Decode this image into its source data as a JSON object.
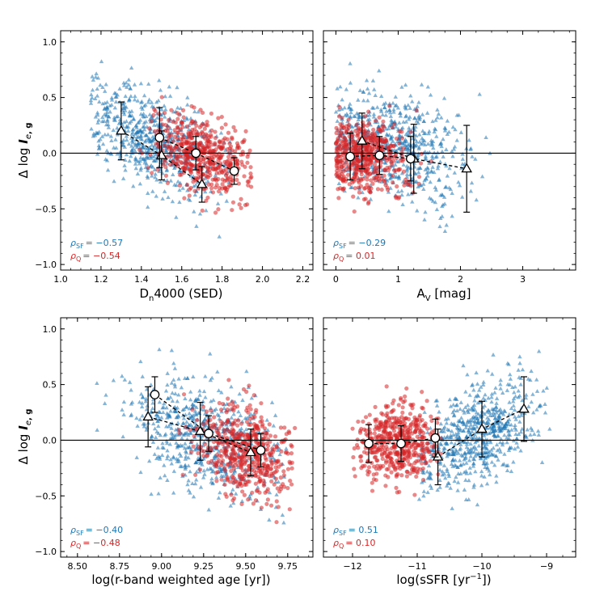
{
  "colors": {
    "star_forming": "#1f77b4",
    "quiescent": "#d62728",
    "zero_line": "#000000",
    "binned": "#000000"
  },
  "chart_data": [
    {
      "type": "scatter",
      "id": "dn4000",
      "xlabel": "D",
      "xlabel_sub": "n",
      "xlabel_rest": "4000 (SED)",
      "ylabel": "Δ log I_e,g",
      "xlim": [
        1.0,
        2.25
      ],
      "ylim": [
        -1.05,
        1.1
      ],
      "xticks": [
        "1.0",
        "1.2",
        "1.4",
        "1.6",
        "1.8",
        "2.0",
        "2.2"
      ],
      "xtick_values": [
        1.0,
        1.2,
        1.4,
        1.6,
        1.8,
        2.0,
        2.2
      ],
      "yticks": [
        "−1.0",
        "−0.5",
        "0.0",
        "0.5",
        "1.0"
      ],
      "ytick_values": [
        -1.0,
        -0.5,
        0.0,
        0.5,
        1.0
      ],
      "rho_sf_label": "ρ",
      "rho_sf_sub": "SF",
      "rho_sf": "= −0.57",
      "rho_q_label": "ρ",
      "rho_q_sub": "Q",
      "rho_q": "= −0.54",
      "sf_cloud": {
        "x_center": 1.45,
        "x_spread": 0.17,
        "y_slope": -0.8,
        "y_intercept": 1.3,
        "y_spread": 0.22,
        "n": 650,
        "x_min": 1.15,
        "x_max": 1.85
      },
      "q_cloud": {
        "x_center": 1.7,
        "x_spread": 0.12,
        "y_slope": -0.6,
        "y_intercept": 1.0,
        "y_spread": 0.17,
        "n": 520,
        "x_min": 1.35,
        "x_max": 1.95
      },
      "sf_binned": {
        "x": [
          1.3,
          1.5,
          1.7
        ],
        "y": [
          0.2,
          -0.02,
          -0.28
        ],
        "err": [
          0.26,
          0.22,
          0.16
        ]
      },
      "q_binned": {
        "x": [
          1.49,
          1.67,
          1.86
        ],
        "y": [
          0.14,
          0.0,
          -0.16
        ],
        "err": [
          0.27,
          0.15,
          0.12
        ]
      }
    },
    {
      "type": "scatter",
      "id": "av",
      "xlabel": "A",
      "xlabel_sub": "V",
      "xlabel_rest": " [mag]",
      "xlim": [
        -0.2,
        3.85
      ],
      "ylim": [
        -1.05,
        1.1
      ],
      "xticks": [
        "0",
        "1",
        "2",
        "3"
      ],
      "xtick_values": [
        0,
        1,
        2,
        3
      ],
      "yticks": [],
      "ytick_values": [
        -1.0,
        -0.5,
        0.0,
        0.5,
        1.0
      ],
      "rho_sf_label": "ρ",
      "rho_sf_sub": "SF",
      "rho_sf": "= −0.29",
      "rho_q_label": "ρ",
      "rho_q_sub": "Q",
      "rho_q": "= 0.01",
      "sf_cloud": {
        "x_center": 0.9,
        "x_spread": 0.6,
        "y_slope": -0.12,
        "y_intercept": 0.15,
        "y_spread": 0.25,
        "n": 650,
        "x_min": 0.0,
        "x_max": 3.6
      },
      "q_cloud": {
        "x_center": 0.45,
        "x_spread": 0.35,
        "y_slope": 0.0,
        "y_intercept": -0.02,
        "y_spread": 0.17,
        "n": 520,
        "x_min": 0.0,
        "x_max": 2.5
      },
      "sf_binned": {
        "x": [
          0.42,
          1.25,
          2.1
        ],
        "y": [
          0.11,
          -0.05,
          -0.14
        ],
        "err": [
          0.25,
          0.31,
          0.39
        ]
      },
      "q_binned": {
        "x": [
          0.23,
          0.7,
          1.2
        ],
        "y": [
          -0.03,
          -0.02,
          -0.05
        ],
        "err": [
          0.21,
          0.17,
          0.2
        ]
      }
    },
    {
      "type": "scatter",
      "id": "age",
      "xlabel": "log(r-band weighted age [yr])",
      "ylabel": "Δ log I_e,g",
      "xlim": [
        8.4,
        9.9
      ],
      "ylim": [
        -1.05,
        1.1
      ],
      "xticks": [
        "8.50",
        "8.75",
        "9.00",
        "9.25",
        "9.50",
        "9.75"
      ],
      "xtick_values": [
        8.5,
        8.75,
        9.0,
        9.25,
        9.5,
        9.75
      ],
      "yticks": [
        "−1.0",
        "−0.5",
        "0.0",
        "0.5",
        "1.0"
      ],
      "ytick_values": [
        -1.0,
        -0.5,
        0.0,
        0.5,
        1.0
      ],
      "rho_sf_label": "ρ",
      "rho_sf_sub": "SF",
      "rho_sf": "= −0.40",
      "rho_q_label": "ρ",
      "rho_q_sub": "Q",
      "rho_q": "= −0.48",
      "sf_cloud": {
        "x_center": 9.25,
        "x_spread": 0.22,
        "y_slope": -0.45,
        "y_intercept": 4.2,
        "y_spread": 0.25,
        "n": 650,
        "x_min": 8.6,
        "x_max": 9.75
      },
      "q_cloud": {
        "x_center": 9.5,
        "x_spread": 0.14,
        "y_slope": -0.45,
        "y_intercept": 4.2,
        "y_spread": 0.2,
        "n": 520,
        "x_min": 8.85,
        "x_max": 9.8
      },
      "sf_binned": {
        "x": [
          8.92,
          9.23,
          9.53
        ],
        "y": [
          0.21,
          0.08,
          -0.11
        ],
        "err": [
          0.27,
          0.26,
          0.21
        ]
      },
      "q_binned": {
        "x": [
          8.96,
          9.28,
          9.59
        ],
        "y": [
          0.41,
          0.06,
          -0.09
        ],
        "err": [
          0.16,
          0.16,
          0.15
        ]
      }
    },
    {
      "type": "scatter",
      "id": "ssfr",
      "xlabel": "log(sSFR [yr",
      "xlabel_sup": "−1",
      "xlabel_rest": "])",
      "xlim": [
        -12.45,
        -8.55
      ],
      "ylim": [
        -1.05,
        1.1
      ],
      "xticks": [
        "−12",
        "−11",
        "−10",
        "−9"
      ],
      "xtick_values": [
        -12,
        -11,
        -10,
        -9
      ],
      "yticks": [],
      "ytick_values": [
        -1.0,
        -0.5,
        0.0,
        0.5,
        1.0
      ],
      "rho_sf_label": "ρ",
      "rho_sf_sub": "SF",
      "rho_sf": "= 0.51",
      "rho_q_label": "ρ",
      "rho_q_sub": "Q",
      "rho_q": "= 0.10",
      "sf_cloud": {
        "x_center": -10.05,
        "x_spread": 0.45,
        "y_slope": 0.25,
        "y_intercept": 2.55,
        "y_spread": 0.22,
        "n": 650,
        "x_min": -11.0,
        "x_max": -8.9
      },
      "q_cloud": {
        "x_center": -11.3,
        "x_spread": 0.3,
        "y_slope": 0.05,
        "y_intercept": 0.55,
        "y_spread": 0.17,
        "n": 520,
        "x_min": -12.0,
        "x_max": -10.6
      },
      "sf_binned": {
        "x": [
          -10.68,
          -10.0,
          -9.35
        ],
        "y": [
          -0.15,
          0.1,
          0.28
        ],
        "err": [
          0.25,
          0.25,
          0.29
        ]
      },
      "q_binned": {
        "x": [
          -11.75,
          -11.25,
          -10.72
        ],
        "y": [
          -0.03,
          -0.03,
          0.02
        ],
        "err": [
          0.17,
          0.16,
          0.17
        ]
      }
    }
  ]
}
